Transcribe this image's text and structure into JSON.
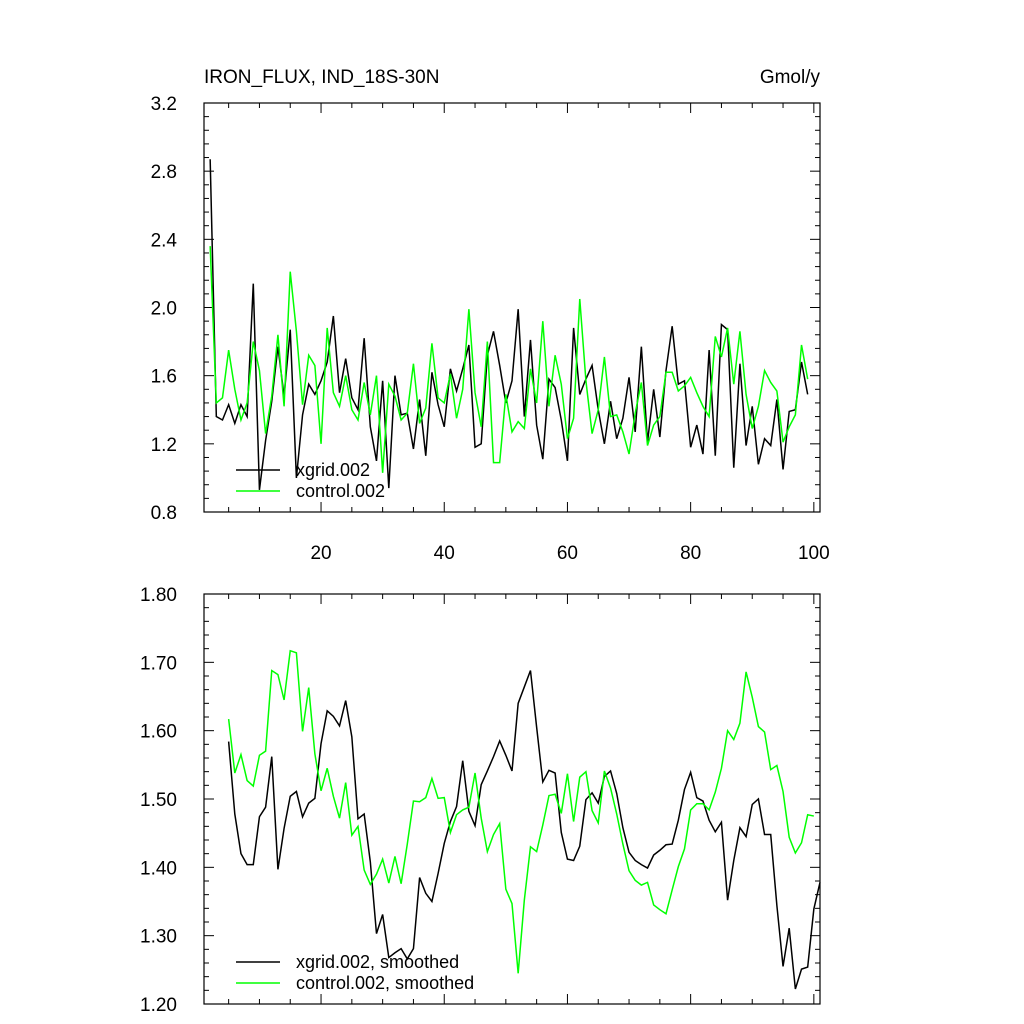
{
  "chart_data": [
    {
      "type": "line",
      "title": "IRON_FLUX, IND_18S-30N",
      "units": "Gmol/y",
      "xlim": [
        1,
        101
      ],
      "ylim": [
        0.8,
        3.2
      ],
      "x_ticks": [
        20,
        40,
        60,
        80,
        100
      ],
      "x_tick_labels": [
        "20",
        "40",
        "60",
        "80",
        "100"
      ],
      "y_ticks": [
        0.8,
        1.2,
        1.6,
        2.0,
        2.4,
        2.8,
        3.2
      ],
      "y_tick_labels": [
        "0.8",
        "1.2",
        "1.6",
        "2.0",
        "2.4",
        "2.8",
        "3.2"
      ],
      "legend_position": "bottom-left",
      "x_start": 2,
      "series": [
        {
          "name": "xgrid.002",
          "color": "#000000",
          "values": [
            2.87,
            1.36,
            1.34,
            1.43,
            1.32,
            1.43,
            1.36,
            2.14,
            0.93,
            1.22,
            1.45,
            1.77,
            1.48,
            1.87,
            1.0,
            1.37,
            1.55,
            1.49,
            1.57,
            1.68,
            1.95,
            1.5,
            1.7,
            1.47,
            1.4,
            1.82,
            1.3,
            1.1,
            1.57,
            0.94,
            1.6,
            1.37,
            1.38,
            1.17,
            1.46,
            1.13,
            1.62,
            1.43,
            1.3,
            1.64,
            1.51,
            1.64,
            1.78,
            1.18,
            1.2,
            1.72,
            1.86,
            1.66,
            1.44,
            1.57,
            1.99,
            1.36,
            1.81,
            1.31,
            1.11,
            1.58,
            1.53,
            1.34,
            1.1,
            1.88,
            1.49,
            1.58,
            1.66,
            1.4,
            1.2,
            1.45,
            1.23,
            1.35,
            1.59,
            1.27,
            1.77,
            1.21,
            1.52,
            1.24,
            1.63,
            1.89,
            1.55,
            1.57,
            1.18,
            1.31,
            1.14,
            1.75,
            1.13,
            1.9,
            1.87,
            1.06,
            1.67,
            1.19,
            1.42,
            1.08,
            1.23,
            1.19,
            1.46,
            1.05,
            1.39,
            1.4,
            1.68,
            1.49
          ]
        },
        {
          "name": "control.002",
          "color": "#00ff00",
          "values": [
            2.36,
            1.44,
            1.47,
            1.75,
            1.52,
            1.34,
            1.44,
            1.8,
            1.63,
            1.26,
            1.48,
            1.84,
            1.42,
            2.21,
            1.86,
            1.43,
            1.72,
            1.66,
            1.2,
            1.88,
            1.5,
            1.42,
            1.6,
            1.4,
            1.34,
            1.56,
            1.37,
            1.6,
            1.03,
            1.55,
            1.48,
            1.34,
            1.38,
            1.67,
            1.32,
            1.41,
            1.79,
            1.47,
            1.44,
            1.61,
            1.35,
            1.52,
            1.99,
            1.5,
            1.3,
            1.8,
            1.09,
            1.09,
            1.49,
            1.27,
            1.33,
            1.29,
            1.64,
            1.44,
            1.92,
            1.42,
            1.72,
            1.55,
            1.23,
            1.35,
            2.05,
            1.57,
            1.26,
            1.4,
            1.71,
            1.36,
            1.37,
            1.27,
            1.14,
            1.38,
            1.56,
            1.19,
            1.31,
            1.36,
            1.62,
            1.62,
            1.51,
            1.54,
            1.59,
            1.5,
            1.42,
            1.36,
            1.83,
            1.71,
            1.88,
            1.55,
            1.86,
            1.49,
            1.29,
            1.42,
            1.63,
            1.56,
            1.51,
            1.21,
            1.3,
            1.37,
            1.78,
            1.58
          ]
        }
      ]
    },
    {
      "type": "line",
      "xlim": [
        1,
        101
      ],
      "ylim": [
        1.2,
        1.8
      ],
      "x_ticks": [
        20,
        40,
        60,
        80,
        100
      ],
      "y_ticks": [
        1.2,
        1.3,
        1.4,
        1.5,
        1.6,
        1.7,
        1.8
      ],
      "y_tick_labels": [
        "1.20",
        "1.30",
        "1.40",
        "1.50",
        "1.60",
        "1.70",
        "1.80"
      ],
      "legend_position": "bottom-left",
      "x_start": 5,
      "series": [
        {
          "name": "xgrid.002, smoothed",
          "color": "#000000",
          "values": [
            1.584,
            1.478,
            1.42,
            1.404,
            1.404,
            1.474,
            1.488,
            1.562,
            1.397,
            1.457,
            1.504,
            1.511,
            1.474,
            1.494,
            1.501,
            1.581,
            1.629,
            1.621,
            1.607,
            1.644,
            1.591,
            1.471,
            1.478,
            1.408,
            1.303,
            1.331,
            1.268,
            1.275,
            1.281,
            1.266,
            1.281,
            1.385,
            1.362,
            1.35,
            1.391,
            1.435,
            1.467,
            1.489,
            1.556,
            1.482,
            1.461,
            1.521,
            1.541,
            1.562,
            1.585,
            1.564,
            1.541,
            1.64,
            1.664,
            1.688,
            1.605,
            1.525,
            1.542,
            1.538,
            1.451,
            1.412,
            1.41,
            1.431,
            1.499,
            1.509,
            1.494,
            1.533,
            1.541,
            1.508,
            1.458,
            1.422,
            1.41,
            1.404,
            1.399,
            1.418,
            1.425,
            1.433,
            1.434,
            1.469,
            1.514,
            1.539,
            1.502,
            1.497,
            1.469,
            1.452,
            1.466,
            1.352,
            1.41,
            1.458,
            1.445,
            1.492,
            1.5,
            1.448,
            1.448,
            1.344,
            1.255,
            1.311,
            1.222,
            1.251,
            1.254,
            1.339,
            1.378
          ]
        },
        {
          "name": "control.002, smoothed",
          "color": "#00ff00",
          "values": [
            1.617,
            1.538,
            1.565,
            1.527,
            1.519,
            1.564,
            1.57,
            1.688,
            1.682,
            1.645,
            1.717,
            1.714,
            1.599,
            1.663,
            1.566,
            1.512,
            1.545,
            1.504,
            1.472,
            1.524,
            1.447,
            1.46,
            1.396,
            1.375,
            1.39,
            1.412,
            1.377,
            1.416,
            1.376,
            1.434,
            1.497,
            1.496,
            1.502,
            1.53,
            1.501,
            1.502,
            1.451,
            1.477,
            1.484,
            1.488,
            1.538,
            1.472,
            1.423,
            1.448,
            1.464,
            1.368,
            1.347,
            1.245,
            1.352,
            1.43,
            1.423,
            1.462,
            1.505,
            1.507,
            1.479,
            1.537,
            1.467,
            1.532,
            1.54,
            1.483,
            1.465,
            1.541,
            1.516,
            1.478,
            1.434,
            1.395,
            1.381,
            1.374,
            1.378,
            1.345,
            1.338,
            1.332,
            1.367,
            1.401,
            1.427,
            1.484,
            1.493,
            1.493,
            1.484,
            1.51,
            1.545,
            1.6,
            1.587,
            1.611,
            1.686,
            1.649,
            1.606,
            1.598,
            1.543,
            1.549,
            1.511,
            1.444,
            1.421,
            1.436,
            1.477,
            1.475
          ]
        }
      ]
    }
  ]
}
